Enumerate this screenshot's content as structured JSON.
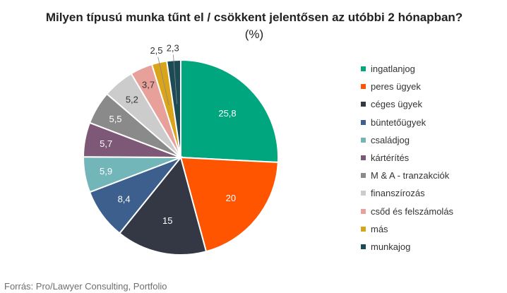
{
  "chart_data": {
    "type": "pie",
    "title": "Milyen típusú munka tűnt el / csökkent jelentősen az utóbbi 2 hónapban?",
    "unit_label": "(%)",
    "legend_position": "right",
    "categories": [
      "ingatlanjog",
      "peres ügyek",
      "céges ügyek",
      "büntetőügyek",
      "családjog",
      "kártérítés",
      "M & A - tranzakciók",
      "finanszírozás",
      "csőd és felszámolás",
      "más",
      "munkajog"
    ],
    "values": [
      25.8,
      20,
      15,
      8.4,
      5.9,
      5.7,
      5.5,
      5.2,
      3.7,
      2.5,
      2.3
    ],
    "value_labels": [
      "25,8",
      "20",
      "15",
      "8,4",
      "5,9",
      "5,7",
      "5,5",
      "5,2",
      "3,7",
      "2,5",
      "2,3"
    ],
    "colors": [
      "#00a67e",
      "#ff5500",
      "#333844",
      "#3c5f8d",
      "#72b6b9",
      "#7e5977",
      "#8a8a8a",
      "#cccccc",
      "#e8a19a",
      "#d9a31a",
      "#1c4a55"
    ]
  },
  "source": "Forrás: Pro/Lawyer Consulting, Portfolio"
}
